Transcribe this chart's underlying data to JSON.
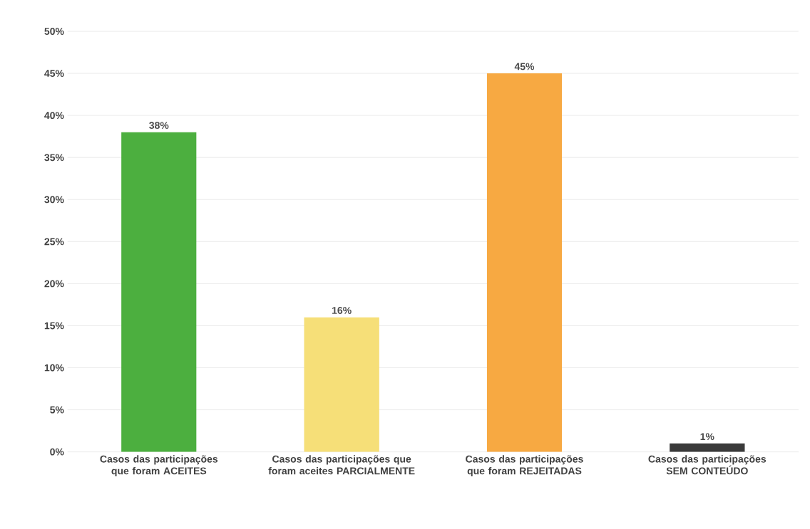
{
  "chart_data": {
    "type": "bar",
    "categories": [
      "Casos das participações que foram ACEITES",
      "Casos das participações que foram aceites PARCIALMENTE",
      "Casos das participações que foram REJEITADAS",
      "Casos das participações SEM CONTEÚDO"
    ],
    "values": [
      38,
      16,
      45,
      1
    ],
    "colors": [
      "#4caf3f",
      "#f6df78",
      "#f7a942",
      "#3a3a3a"
    ],
    "value_labels": [
      "38%",
      "16%",
      "45%",
      "1%"
    ],
    "ylim": [
      0,
      50
    ],
    "yticks": [
      {
        "value": 0,
        "label": "0%"
      },
      {
        "value": 5,
        "label": "5%"
      },
      {
        "value": 10,
        "label": "10%"
      },
      {
        "value": 15,
        "label": "15%"
      },
      {
        "value": 20,
        "label": "20%"
      },
      {
        "value": 25,
        "label": "25%"
      },
      {
        "value": 30,
        "label": "30%"
      },
      {
        "value": 35,
        "label": "35%"
      },
      {
        "value": 40,
        "label": "40%"
      },
      {
        "value": 45,
        "label": "45%"
      },
      {
        "value": 50,
        "label": "50%"
      }
    ],
    "grid": "y"
  }
}
